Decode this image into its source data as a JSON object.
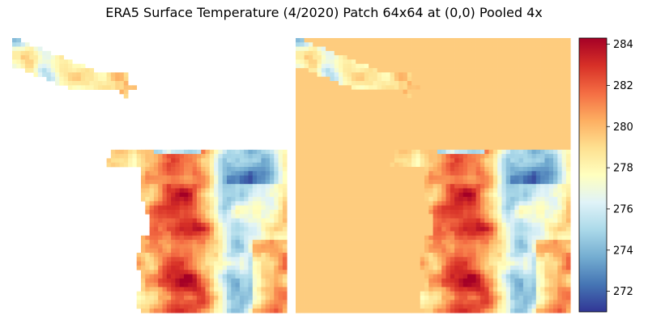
{
  "figure": {
    "title": "ERA5 Surface Temperature (4/2020) Patch 64x64 at (0,0) Pooled 4x"
  },
  "chart_data": {
    "type": "heatmap",
    "title": "ERA5 Surface Temperature (4/2020) Patch 64x64 at (0,0) Pooled 4x",
    "panels": [
      {
        "name": "",
        "masked_ocean": "blank (no data)"
      },
      {
        "name": "",
        "masked_ocean": "filled at ~279.5"
      }
    ],
    "colormap": "RdYlBu_r",
    "grid": false,
    "colorbar": {
      "vmin": 271,
      "vmax": 284.3,
      "ticks": [
        272,
        274,
        276,
        278,
        280,
        282,
        284
      ],
      "tick_labels": [
        "272",
        "274",
        "276",
        "278",
        "280",
        "282",
        "284"
      ],
      "position": "right"
    },
    "colors": {
      "cold": "#313695",
      "neutral": "#ffffbf",
      "warm": "#a50026",
      "ocean_fill": "#fdfdbf"
    }
  }
}
